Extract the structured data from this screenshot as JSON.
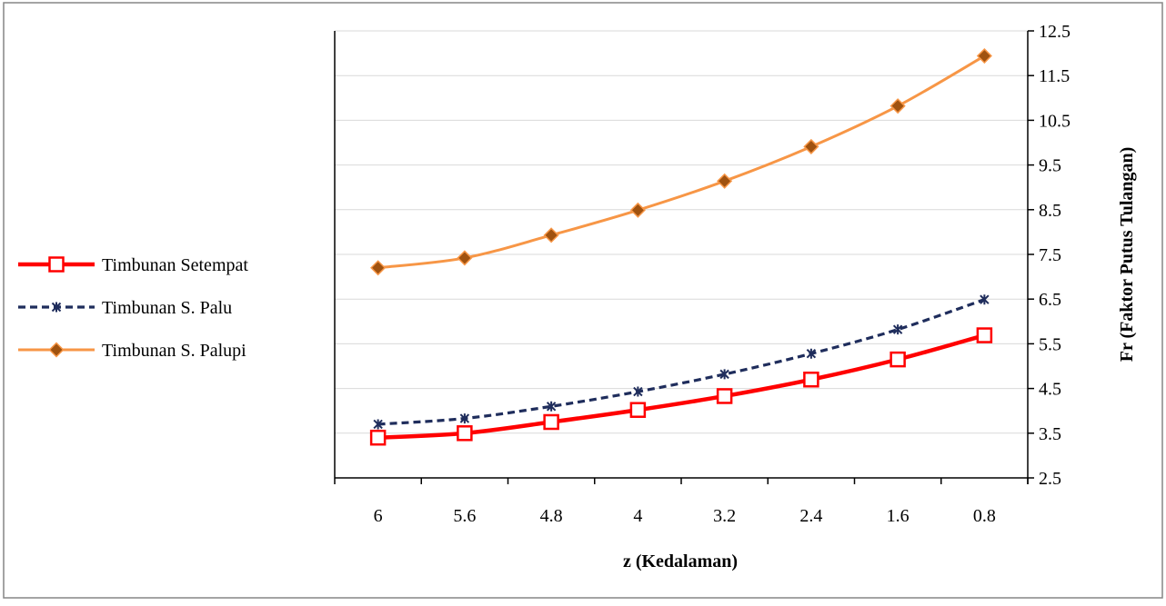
{
  "chart_data": {
    "type": "line",
    "xlabel": "z (Kedalaman)",
    "ylabel": "Fr (Faktor Putus Tulangan)",
    "categories": [
      "6",
      "5.6",
      "4.8",
      "4",
      "3.2",
      "2.4",
      "1.6",
      "0.8"
    ],
    "ylim": [
      2.5,
      12.5
    ],
    "yticks": [
      "2.5",
      "3.5",
      "4.5",
      "5.5",
      "6.5",
      "7.5",
      "8.5",
      "9.5",
      "10.5",
      "11.5",
      "12.5"
    ],
    "y_axis_side": "right",
    "grid": true,
    "legend_position": "left",
    "series": [
      {
        "name": "Timbunan Setempat",
        "values": [
          3.4,
          3.5,
          3.75,
          4.02,
          4.33,
          4.7,
          5.15,
          5.69
        ],
        "color": "#ff0000",
        "marker": "open-square",
        "line_style": "solid-thick"
      },
      {
        "name": "Timbunan S. Palu",
        "values": [
          3.7,
          3.83,
          4.1,
          4.43,
          4.82,
          5.28,
          5.82,
          6.49
        ],
        "color": "#1f2d5c",
        "marker": "star-x",
        "line_style": "dashed"
      },
      {
        "name": "Timbunan S. Palupi",
        "values": [
          7.2,
          7.42,
          7.93,
          8.49,
          9.14,
          9.91,
          10.82,
          11.94
        ],
        "color": "#f79646",
        "marker_color": "#a0520f",
        "marker": "diamond",
        "line_style": "solid"
      }
    ]
  }
}
